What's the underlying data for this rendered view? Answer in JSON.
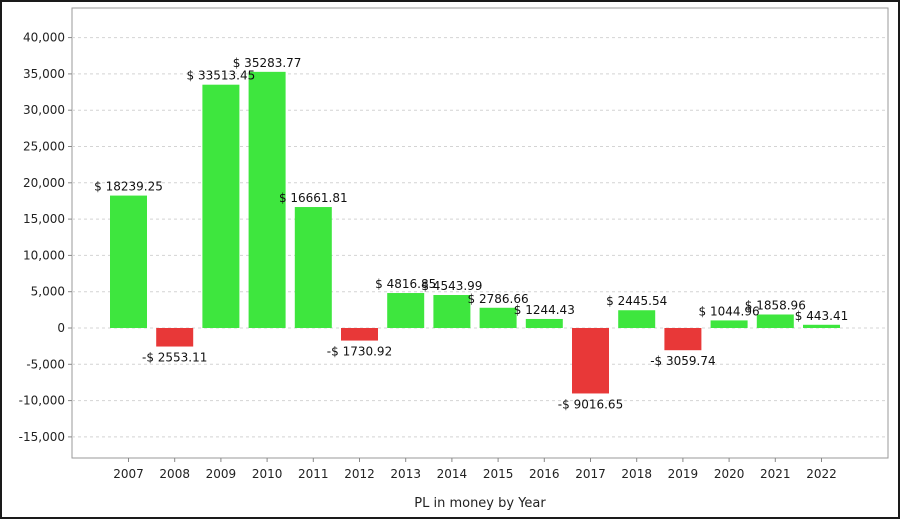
{
  "chart_data": {
    "type": "bar",
    "xlabel": "PL in money by Year",
    "ylabel": "",
    "ylim": [
      -18000,
      43000
    ],
    "yticks": [
      -15000,
      -10000,
      -5000,
      0,
      5000,
      10000,
      15000,
      20000,
      25000,
      30000,
      35000,
      40000
    ],
    "ytick_labels": [
      "-15,000",
      "-10,000",
      "-5,000",
      "0",
      "5,000",
      "10,000",
      "15,000",
      "20,000",
      "25,000",
      "30,000",
      "35,000",
      "40,000"
    ],
    "grid": true,
    "categories": [
      "2007",
      "2008",
      "2009",
      "2010",
      "2011",
      "2012",
      "2013",
      "2014",
      "2015",
      "2016",
      "2017",
      "2018",
      "2019",
      "2020",
      "2021",
      "2022"
    ],
    "values": [
      18239.25,
      -2553.11,
      33513.45,
      35283.77,
      16661.81,
      -1730.92,
      4816.85,
      4543.99,
      2786.66,
      1244.43,
      -9016.65,
      2445.54,
      -3059.74,
      1044.96,
      1858.96,
      443.41
    ],
    "data_labels": [
      "$ 18239.25",
      "-$ 2553.11",
      "$ 33513.45",
      "$ 35283.77",
      "$ 16661.81",
      "-$ 1730.92",
      "$ 4816.85",
      "$ 4543.99",
      "$ 2786.66",
      "$ 1244.43",
      "-$ 9016.65",
      "$ 2445.54",
      "-$ 3059.74",
      "$ 1044.96",
      "$ 1858.96",
      "$ 443.41"
    ],
    "colors": {
      "positive": "#3ee63e",
      "negative": "#e83838",
      "grid": "#d4d4d4",
      "axis": "#888888"
    }
  }
}
